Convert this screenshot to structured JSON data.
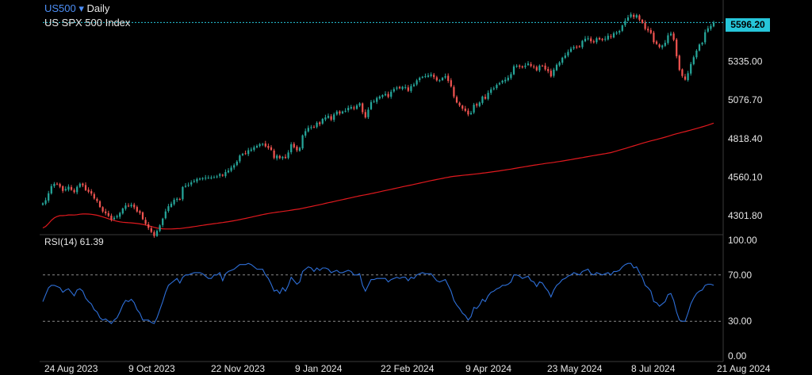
{
  "header": {
    "symbol": "US500",
    "dropdown_glyph": "▾",
    "interval": "Daily",
    "description": "US SPX 500 Index"
  },
  "last_price_label": "5596.20",
  "rsi_label": "RSI(14) 61.39",
  "colors": {
    "up": "#26a69a",
    "down": "#ef5350",
    "ma": "#e0191e",
    "rsi": "#2e6fd8",
    "last_price": "#26c6da"
  },
  "chart_data": [
    {
      "type": "candlestick",
      "title": "US500 Daily",
      "ylim": [
        4180,
        5720
      ],
      "y_ticks": [
        "5596.20",
        "5335.00",
        "5076.70",
        "4818.40",
        "4560.10",
        "4301.80"
      ],
      "x_ticks": [
        "24 Aug 2023",
        "9 Oct 2023",
        "22 Nov 2023",
        "9 Jan 2024",
        "22 Feb 2024",
        "9 Apr 2024",
        "23 May 2024",
        "8 Jul 2024",
        "21 Aug 2024"
      ],
      "close_series": [
        4385,
        4405,
        4452,
        4500,
        4515,
        4512,
        4496,
        4468,
        4480,
        4496,
        4475,
        4460,
        4495,
        4516,
        4505,
        4473,
        4462,
        4450,
        4417,
        4400,
        4360,
        4330,
        4318,
        4300,
        4275,
        4288,
        4299,
        4320,
        4350,
        4370,
        4365,
        4375,
        4358,
        4330,
        4320,
        4278,
        4247,
        4220,
        4193,
        4166,
        4200,
        4237,
        4282,
        4330,
        4365,
        4382,
        4409,
        4415,
        4412,
        4494,
        4502,
        4508,
        4525,
        4535,
        4547,
        4550,
        4554,
        4556,
        4556,
        4557,
        4559,
        4565,
        4580,
        4570,
        4594,
        4604,
        4624,
        4640,
        4664,
        4704,
        4716,
        4719,
        4740,
        4745,
        4760,
        4769,
        4781,
        4783,
        4766,
        4756,
        4742,
        4689,
        4704,
        4688,
        4696,
        4688,
        4725,
        4780,
        4760,
        4740,
        4756,
        4840,
        4868,
        4890,
        4895,
        4894,
        4924,
        4915,
        4950,
        4960,
        4970,
        4945,
        4980,
        4999,
        4986,
        5000,
        5004,
        5024,
        5030,
        5020,
        5040,
        5054,
        4995,
        4960,
        5012,
        5063,
        5068,
        5090,
        5100,
        5109,
        5117,
        5098,
        5132,
        5150,
        5160,
        5155,
        5165,
        5163,
        5138,
        5170,
        5180,
        5208,
        5225,
        5232,
        5236,
        5241,
        5248,
        5230,
        5208,
        5209,
        5225,
        5236,
        5205,
        5168,
        5100,
        5060,
        5040,
        5019,
        5004,
        4980,
        4990,
        5045,
        5040,
        5060,
        5100,
        5085,
        5125,
        5148,
        5155,
        5178,
        5190,
        5206,
        5212,
        5226,
        5250,
        5302,
        5306,
        5300,
        5295,
        5307,
        5321,
        5305,
        5300,
        5276,
        5307,
        5306,
        5282,
        5270,
        5235,
        5280,
        5312,
        5329,
        5360,
        5375,
        5399,
        5420,
        5431,
        5432,
        5435,
        5473,
        5487,
        5490,
        5470,
        5463,
        5490,
        5483,
        5479,
        5487,
        5507,
        5498,
        5523,
        5529,
        5539,
        5576,
        5606,
        5630,
        5650,
        5633,
        5645,
        5615,
        5593,
        5553,
        5543,
        5525,
        5464,
        5452,
        5432,
        5442,
        5460,
        5510,
        5521,
        5480,
        5370,
        5278,
        5238,
        5213,
        5256,
        5318,
        5363,
        5407,
        5448,
        5460,
        5531,
        5557,
        5573,
        5596
      ]
    },
    {
      "type": "line",
      "series": [
        {
          "name": "RSI(14)",
          "values": [
            47,
            53,
            59,
            61,
            61,
            60,
            59,
            55,
            57,
            58,
            55,
            52,
            57,
            58,
            56,
            50,
            47,
            45,
            40,
            38,
            33,
            31,
            32,
            30,
            28,
            31,
            33,
            38,
            44,
            48,
            47,
            49,
            46,
            40,
            37,
            31,
            31,
            31,
            29,
            28,
            33,
            40,
            47,
            55,
            61,
            63,
            65,
            67,
            63,
            68,
            70,
            70,
            71,
            72,
            72,
            72,
            71,
            69,
            67,
            67,
            70,
            70,
            72,
            65,
            71,
            73,
            74,
            75,
            77,
            79,
            79,
            79,
            80,
            79,
            77,
            75,
            75,
            75,
            70,
            67,
            62,
            56,
            57,
            54,
            59,
            56,
            61,
            68,
            65,
            62,
            64,
            73,
            75,
            77,
            76,
            73,
            76,
            74,
            76,
            76,
            75,
            72,
            73,
            74,
            72,
            72,
            73,
            74,
            73,
            70,
            70,
            71,
            61,
            56,
            61,
            66,
            66,
            67,
            67,
            67,
            67,
            64,
            66,
            67,
            68,
            67,
            68,
            68,
            65,
            68,
            67,
            70,
            71,
            72,
            71,
            71,
            71,
            68,
            65,
            64,
            65,
            66,
            61,
            56,
            48,
            44,
            41,
            37,
            35,
            31,
            34,
            42,
            41,
            44,
            49,
            47,
            52,
            55,
            56,
            58,
            59,
            61,
            61,
            62,
            64,
            70,
            70,
            69,
            67,
            68,
            69,
            65,
            64,
            60,
            64,
            63,
            59,
            56,
            51,
            57,
            61,
            63,
            66,
            67,
            69,
            70,
            72,
            71,
            70,
            73,
            74,
            75,
            71,
            70,
            72,
            71,
            70,
            71,
            72,
            70,
            73,
            73,
            74,
            77,
            79,
            80,
            80,
            76,
            77,
            72,
            68,
            61,
            59,
            56,
            47,
            46,
            43,
            45,
            47,
            53,
            54,
            48,
            38,
            31,
            30,
            30,
            37,
            45,
            50,
            54,
            56,
            57,
            61,
            62,
            62,
            61
          ]
        }
      ],
      "ylim": [
        0,
        100
      ],
      "y_ticks": [
        "100.00",
        "70.00",
        "30.00",
        "0.00"
      ],
      "levels": [
        70,
        30
      ]
    }
  ]
}
